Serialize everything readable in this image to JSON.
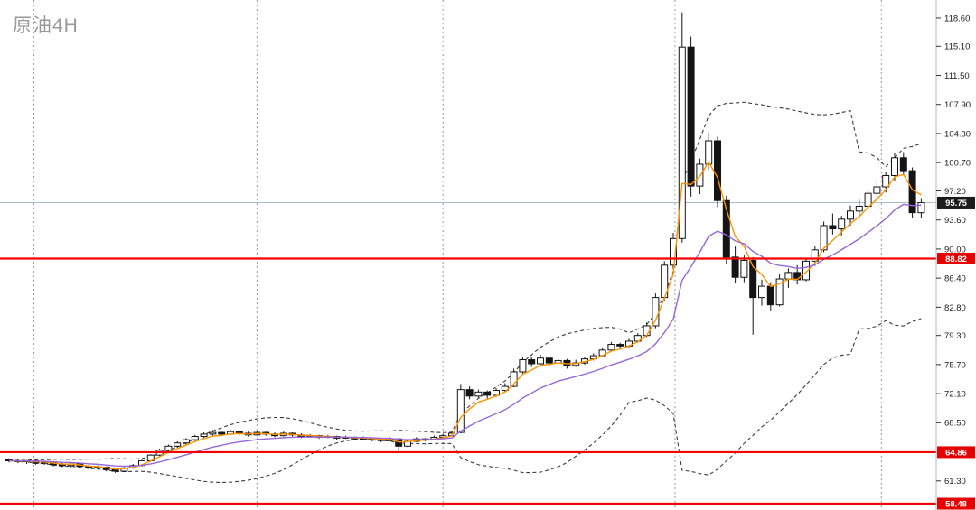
{
  "header": {
    "title": "原油4H",
    "title_color": "#9a9a9a"
  },
  "chart_data": {
    "type": "candlestick",
    "title": "原油4H",
    "symbol": "原油",
    "timeframe": "4H",
    "ylim": [
      57.7,
      120.83
    ],
    "grid": {
      "vertical_dashed": true,
      "horizontal": false,
      "separator_indices": [
        2.8,
        28,
        49,
        75.2,
        98.5
      ]
    },
    "y_axis": {
      "tick_labels": [
        "118.60",
        "115.10",
        "111.50",
        "107.90",
        "104.30",
        "100.70",
        "97.20",
        "93.60",
        "90.00",
        "86.40",
        "82.80",
        "79.30",
        "75.70",
        "72.10",
        "68.50",
        "61.30"
      ],
      "label_color": "#1c1c1c"
    },
    "current_price": {
      "value": 95.75,
      "label": "95.75",
      "line_color": "#a8bfcc",
      "tag_bg": "#1c1c1c",
      "tag_text_color": "#ffffff"
    },
    "levels": [
      {
        "value": 88.82,
        "label": "88.82"
      },
      {
        "value": 64.86,
        "label": "64.86"
      },
      {
        "value": 58.48,
        "label": "58.48"
      }
    ],
    "level_line_color": "#f40000",
    "level_tag_bg": "#e60000",
    "level_tag_text_color": "#ffffff",
    "overlays": {
      "ma_fast": {
        "type": "EMA",
        "period": 4,
        "color": "#ff9200"
      },
      "ma_slow": {
        "type": "EMA",
        "period": 13,
        "color": "#9668d8"
      },
      "bollinger": {
        "period": 20,
        "deviation": 2,
        "color": "#3c3c3c",
        "style": "dashed"
      }
    },
    "candle_colors": {
      "up_fill": "#ffffff",
      "down_fill": "#141414",
      "outline": "#141414",
      "wick": "#141414"
    },
    "candles": [
      [
        63.9,
        64.1,
        63.6,
        63.8
      ],
      [
        63.8,
        64.0,
        63.5,
        63.7
      ],
      [
        63.7,
        63.9,
        63.4,
        63.8
      ],
      [
        63.8,
        63.9,
        63.3,
        63.5
      ],
      [
        63.5,
        63.8,
        63.3,
        63.6
      ],
      [
        63.6,
        63.7,
        63.1,
        63.3
      ],
      [
        63.3,
        63.6,
        63.0,
        63.2
      ],
      [
        63.2,
        63.5,
        63.0,
        63.4
      ],
      [
        63.4,
        63.5,
        62.9,
        63.1
      ],
      [
        63.1,
        63.3,
        62.7,
        62.9
      ],
      [
        62.9,
        63.2,
        62.7,
        63.0
      ],
      [
        63.0,
        63.1,
        62.5,
        62.7
      ],
      [
        62.7,
        62.9,
        62.3,
        62.5
      ],
      [
        62.5,
        63.0,
        62.4,
        62.9
      ],
      [
        62.9,
        63.4,
        62.8,
        63.2
      ],
      [
        63.2,
        63.9,
        63.1,
        63.8
      ],
      [
        63.8,
        64.6,
        63.7,
        64.5
      ],
      [
        64.5,
        65.3,
        64.4,
        65.1
      ],
      [
        65.1,
        65.8,
        64.9,
        65.6
      ],
      [
        65.6,
        66.2,
        65.4,
        66.0
      ],
      [
        66.0,
        66.6,
        65.8,
        66.4
      ],
      [
        66.4,
        67.0,
        66.2,
        66.8
      ],
      [
        66.8,
        67.3,
        66.6,
        67.1
      ],
      [
        67.1,
        67.5,
        66.9,
        67.3
      ],
      [
        67.3,
        67.4,
        66.9,
        67.1
      ],
      [
        67.1,
        67.6,
        67.0,
        67.4
      ],
      [
        67.4,
        67.5,
        67.0,
        67.2
      ],
      [
        67.2,
        67.4,
        66.8,
        67.0
      ],
      [
        67.0,
        67.5,
        66.9,
        67.3
      ],
      [
        67.3,
        67.4,
        66.9,
        67.1
      ],
      [
        67.1,
        67.3,
        66.7,
        66.9
      ],
      [
        66.9,
        67.4,
        66.8,
        67.2
      ],
      [
        67.2,
        67.3,
        66.8,
        67.0
      ],
      [
        67.0,
        67.2,
        66.6,
        66.8
      ],
      [
        66.8,
        67.1,
        66.7,
        66.9
      ],
      [
        66.9,
        67.0,
        66.5,
        66.7
      ],
      [
        66.7,
        67.0,
        66.6,
        66.8
      ],
      [
        66.8,
        66.9,
        66.4,
        66.6
      ],
      [
        66.6,
        66.9,
        66.5,
        66.7
      ],
      [
        66.7,
        66.8,
        66.3,
        66.5
      ],
      [
        66.5,
        66.8,
        66.4,
        66.6
      ],
      [
        66.6,
        66.7,
        66.2,
        66.4
      ],
      [
        66.4,
        66.6,
        66.1,
        66.3
      ],
      [
        66.3,
        66.7,
        66.2,
        66.5
      ],
      [
        66.5,
        66.6,
        64.9,
        65.6
      ],
      [
        65.6,
        66.4,
        65.5,
        66.2
      ],
      [
        66.2,
        66.7,
        66.1,
        66.5
      ],
      [
        66.5,
        66.6,
        66.2,
        66.4
      ],
      [
        66.4,
        66.9,
        66.3,
        66.7
      ],
      [
        66.7,
        67.1,
        66.6,
        66.9
      ],
      [
        66.9,
        67.4,
        66.8,
        67.2
      ],
      [
        67.3,
        73.3,
        67.2,
        72.6
      ],
      [
        72.6,
        73.0,
        71.4,
        71.8
      ],
      [
        71.8,
        72.6,
        71.6,
        72.3
      ],
      [
        72.3,
        72.5,
        71.5,
        71.9
      ],
      [
        71.9,
        72.8,
        71.7,
        72.5
      ],
      [
        72.5,
        73.4,
        72.3,
        73.0
      ],
      [
        73.0,
        75.2,
        72.9,
        74.8
      ],
      [
        74.8,
        76.6,
        74.6,
        76.3
      ],
      [
        76.3,
        76.7,
        75.4,
        75.8
      ],
      [
        75.8,
        76.9,
        75.6,
        76.5
      ],
      [
        76.5,
        76.7,
        75.5,
        75.9
      ],
      [
        75.9,
        76.6,
        75.6,
        76.2
      ],
      [
        76.2,
        76.4,
        75.2,
        75.6
      ],
      [
        75.6,
        76.3,
        75.4,
        75.9
      ],
      [
        75.9,
        76.7,
        75.7,
        76.4
      ],
      [
        76.4,
        77.1,
        76.2,
        76.8
      ],
      [
        76.8,
        77.8,
        76.6,
        77.5
      ],
      [
        77.5,
        78.5,
        77.3,
        78.2
      ],
      [
        78.2,
        78.4,
        77.6,
        78.0
      ],
      [
        78.0,
        78.9,
        77.8,
        78.6
      ],
      [
        78.6,
        79.6,
        78.4,
        79.3
      ],
      [
        79.3,
        80.9,
        79.1,
        80.5
      ],
      [
        80.5,
        84.5,
        80.2,
        84.0
      ],
      [
        84.0,
        88.5,
        83.6,
        88.0
      ],
      [
        88.0,
        92.0,
        87.5,
        91.3
      ],
      [
        91.3,
        119.3,
        90.8,
        115.0
      ],
      [
        115.0,
        116.3,
        96.5,
        97.8
      ],
      [
        97.8,
        101.2,
        96.8,
        100.5
      ],
      [
        100.5,
        104.4,
        99.8,
        103.4
      ],
      [
        103.4,
        103.9,
        95.2,
        96.0
      ],
      [
        96.0,
        96.6,
        88.2,
        89.0
      ],
      [
        89.0,
        90.4,
        85.8,
        86.5
      ],
      [
        86.5,
        89.2,
        85.9,
        88.6
      ],
      [
        88.6,
        89.0,
        79.4,
        84.0
      ],
      [
        84.0,
        86.2,
        83.0,
        85.4
      ],
      [
        85.4,
        85.9,
        82.4,
        83.1
      ],
      [
        83.1,
        86.9,
        82.9,
        86.3
      ],
      [
        86.3,
        87.6,
        85.2,
        87.1
      ],
      [
        87.1,
        88.0,
        85.6,
        86.2
      ],
      [
        86.2,
        88.9,
        86.0,
        88.5
      ],
      [
        88.5,
        90.4,
        87.9,
        89.9
      ],
      [
        89.9,
        93.4,
        89.6,
        92.9
      ],
      [
        92.9,
        94.4,
        91.8,
        92.5
      ],
      [
        92.5,
        94.1,
        91.6,
        93.7
      ],
      [
        93.7,
        95.4,
        92.9,
        94.7
      ],
      [
        94.7,
        96.1,
        93.9,
        95.3
      ],
      [
        95.3,
        97.4,
        94.7,
        96.9
      ],
      [
        96.9,
        98.4,
        95.9,
        97.7
      ],
      [
        97.7,
        99.6,
        97.0,
        99.1
      ],
      [
        99.1,
        101.9,
        98.5,
        101.3
      ],
      [
        101.3,
        102.0,
        99.2,
        99.7
      ],
      [
        99.7,
        100.1,
        93.9,
        94.5
      ],
      [
        94.5,
        96.3,
        93.9,
        95.75
      ]
    ]
  }
}
